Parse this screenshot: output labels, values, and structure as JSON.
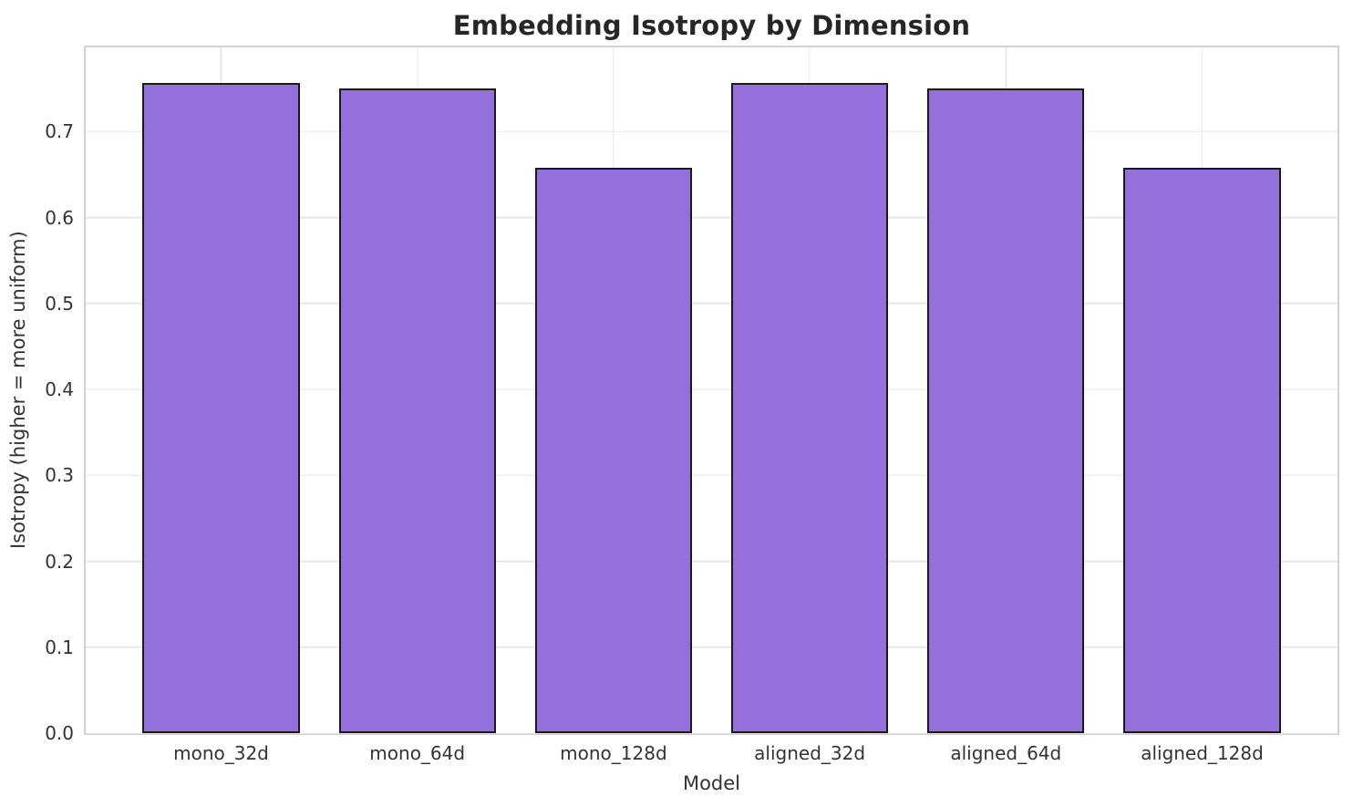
{
  "chart_data": {
    "type": "bar",
    "title": "Embedding Isotropy by Dimension",
    "xlabel": "Model",
    "ylabel": "Isotropy (higher = more uniform)",
    "categories": [
      "mono_32d",
      "mono_64d",
      "mono_128d",
      "aligned_32d",
      "aligned_64d",
      "aligned_128d"
    ],
    "values": [
      0.757,
      0.75,
      0.658,
      0.757,
      0.75,
      0.658
    ],
    "yticks": [
      0.0,
      0.1,
      0.2,
      0.3,
      0.4,
      0.5,
      0.6,
      0.7
    ],
    "ytick_labels": [
      "0.0",
      "0.1",
      "0.2",
      "0.3",
      "0.4",
      "0.5",
      "0.6",
      "0.7"
    ],
    "ylim": [
      0,
      0.798
    ],
    "x_margin": 0.69,
    "bar_width_fraction": 0.8,
    "grid": true,
    "legend": "none",
    "colors": {
      "bar_fill": "#9370DB",
      "bar_edge": "#1a1a1a",
      "gridline": "#e8e8e8",
      "spine": "#d2d2d2",
      "title_text": "#262626",
      "tick_text": "#333333"
    }
  }
}
